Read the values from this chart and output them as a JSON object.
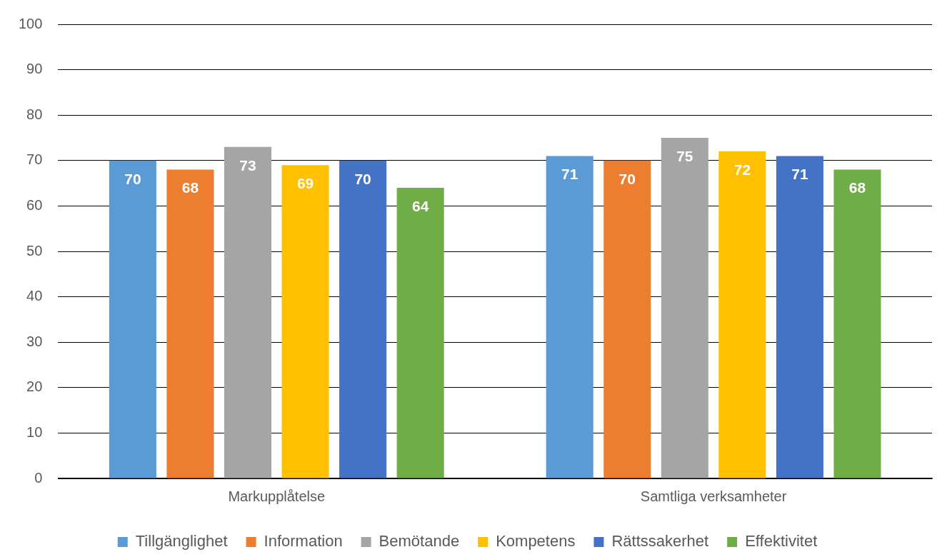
{
  "chart_data": {
    "type": "bar",
    "categories": [
      "Markupplåtelse",
      "Samtliga verksamheter"
    ],
    "series": [
      {
        "name": "Tillgänglighet",
        "color": "#5b9bd5",
        "values": [
          70,
          71
        ]
      },
      {
        "name": "Information",
        "color": "#ed7d31",
        "values": [
          68,
          70
        ]
      },
      {
        "name": "Bemötande",
        "color": "#a5a5a5",
        "values": [
          73,
          75
        ]
      },
      {
        "name": "Kompetens",
        "color": "#ffc000",
        "values": [
          69,
          72
        ]
      },
      {
        "name": "Rättssakerhet",
        "color": "#4472c4",
        "values": [
          70,
          71
        ]
      },
      {
        "name": "Effektivitet",
        "color": "#70ad47",
        "values": [
          64,
          68
        ]
      }
    ],
    "ylim": [
      0,
      100
    ],
    "yticks": [
      0,
      10,
      20,
      30,
      40,
      50,
      60,
      70,
      80,
      90,
      100
    ],
    "grid": "y",
    "legend": "bottom",
    "data_labels": true
  }
}
